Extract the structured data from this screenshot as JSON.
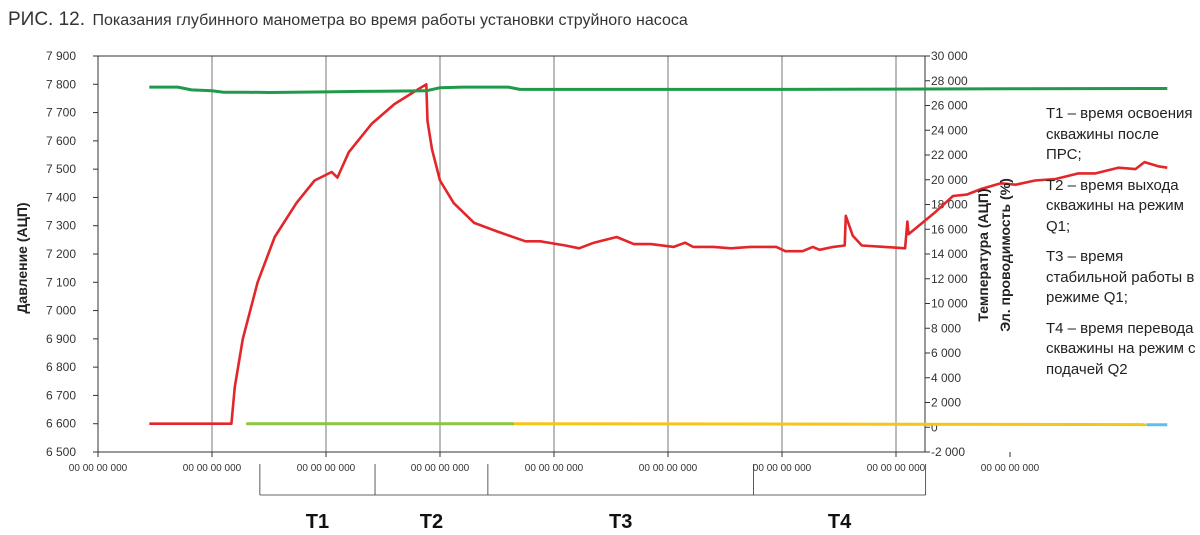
{
  "figure": {
    "label": "РИС. 12.",
    "title": "Показания глубинного манометра во время работы установки струйного насоса"
  },
  "legend": [
    "Т1 – время освоения скважины после ПРС;",
    "Т2 – время выхода скважины на режим Q1;",
    "Т3 – время стабильной работы в режиме Q1;",
    "Т4 – время перевода скважины на режим с подачей Q2"
  ],
  "chart_data": {
    "type": "line",
    "ylabel": "Давление (АЦП)",
    "y2label": [
      "Температура (АЦП)",
      "Эл. проводимость (%)"
    ],
    "ylim": [
      6500,
      7900
    ],
    "y2lim": [
      -2000,
      30000
    ],
    "yticks": [
      "7 900",
      "7 800",
      "7 700",
      "7 600",
      "7 500",
      "7 400",
      "7 300",
      "7 200",
      "7 100",
      "7 000",
      "6 900",
      "6 800",
      "6 700",
      "6 600",
      "6 500"
    ],
    "y2ticks": [
      "30 000",
      "28 000",
      "26 000",
      "24 000",
      "22 000",
      "20 000",
      "18 000",
      "16 000",
      "14 000",
      "12 000",
      "10 000",
      "8 000",
      "6 000",
      "4 000",
      "2 000",
      "0",
      "-2 000"
    ],
    "xticks": [
      "00 00 00 000",
      "00 00 00 000",
      "00 00 00 000",
      "00 00 00 000",
      "00 00 00 000",
      "00 00 00 000",
      "00 00 00 000",
      "00 00 00 000",
      "00 00 00 000"
    ],
    "grid": true,
    "periods": [
      {
        "label": "Т1",
        "from": 1.42,
        "to": 2.43
      },
      {
        "label": "Т2",
        "from": 2.43,
        "to": 3.42
      },
      {
        "label": "Т3",
        "from": 3.42,
        "to": 5.75
      },
      {
        "label": "Т4",
        "from": 5.75,
        "to": 7.26
      }
    ],
    "series": [
      {
        "color": "#e2262a",
        "axis": "left",
        "points": [
          [
            0.45,
            6600
          ],
          [
            1.17,
            6600
          ],
          [
            1.2,
            6730
          ],
          [
            1.27,
            6900
          ],
          [
            1.4,
            7100
          ],
          [
            1.55,
            7260
          ],
          [
            1.74,
            7380
          ],
          [
            1.9,
            7460
          ],
          [
            2.05,
            7490
          ],
          [
            2.1,
            7470
          ],
          [
            2.2,
            7560
          ],
          [
            2.4,
            7660
          ],
          [
            2.6,
            7730
          ],
          [
            2.8,
            7780
          ],
          [
            2.88,
            7800
          ],
          [
            2.89,
            7670
          ],
          [
            2.93,
            7570
          ],
          [
            3.0,
            7460
          ],
          [
            3.12,
            7380
          ],
          [
            3.3,
            7310
          ],
          [
            3.5,
            7280
          ],
          [
            3.75,
            7245
          ],
          [
            3.88,
            7245
          ],
          [
            4.1,
            7230
          ],
          [
            4.22,
            7220
          ],
          [
            4.35,
            7240
          ],
          [
            4.55,
            7260
          ],
          [
            4.7,
            7235
          ],
          [
            4.85,
            7235
          ],
          [
            5.05,
            7225
          ],
          [
            5.15,
            7240
          ],
          [
            5.22,
            7225
          ],
          [
            5.4,
            7225
          ],
          [
            5.55,
            7220
          ],
          [
            5.72,
            7225
          ],
          [
            5.95,
            7225
          ],
          [
            6.03,
            7210
          ],
          [
            6.18,
            7210
          ],
          [
            6.27,
            7225
          ],
          [
            6.33,
            7215
          ],
          [
            6.45,
            7225
          ],
          [
            6.55,
            7230
          ],
          [
            6.56,
            7335
          ],
          [
            6.62,
            7265
          ],
          [
            6.7,
            7230
          ],
          [
            6.9,
            7225
          ],
          [
            7.08,
            7220
          ],
          [
            7.1,
            7315
          ],
          [
            7.11,
            7270
          ],
          [
            7.2,
            7300
          ],
          [
            7.35,
            7350
          ],
          [
            7.5,
            7405
          ],
          [
            7.62,
            7410
          ],
          [
            7.75,
            7430
          ],
          [
            7.92,
            7450
          ],
          [
            8.05,
            7445
          ],
          [
            8.22,
            7460
          ],
          [
            8.4,
            7465
          ],
          [
            8.6,
            7485
          ],
          [
            8.75,
            7485
          ],
          [
            8.95,
            7505
          ],
          [
            9.1,
            7500
          ],
          [
            9.18,
            7525
          ],
          [
            9.3,
            7510
          ],
          [
            9.38,
            7505
          ]
        ]
      },
      {
        "color": "#1f9a4a",
        "axis": "left",
        "points": [
          [
            0.45,
            7790
          ],
          [
            0.7,
            7790
          ],
          [
            0.82,
            7780
          ],
          [
            1.0,
            7777
          ],
          [
            1.1,
            7772
          ],
          [
            1.3,
            7772
          ],
          [
            1.5,
            7771
          ],
          [
            1.7,
            7772
          ],
          [
            2.0,
            7773
          ],
          [
            2.3,
            7775
          ],
          [
            2.6,
            7776
          ],
          [
            2.88,
            7777
          ],
          [
            3.0,
            7788
          ],
          [
            3.2,
            7790
          ],
          [
            3.6,
            7790
          ],
          [
            3.7,
            7782
          ],
          [
            4.5,
            7782
          ],
          [
            6.0,
            7782
          ],
          [
            8.0,
            7784
          ],
          [
            9.38,
            7785
          ]
        ]
      },
      {
        "color": "#8cc63f",
        "axis": "left",
        "points": [
          [
            1.3,
            6600
          ],
          [
            3.65,
            6600
          ]
        ]
      },
      {
        "color": "#f5c518",
        "axis": "left",
        "points": [
          [
            3.65,
            6600
          ],
          [
            9.2,
            6597
          ]
        ]
      },
      {
        "color": "#5bc0eb",
        "axis": "left",
        "points": [
          [
            9.2,
            6596
          ],
          [
            9.38,
            6596
          ]
        ]
      }
    ]
  }
}
